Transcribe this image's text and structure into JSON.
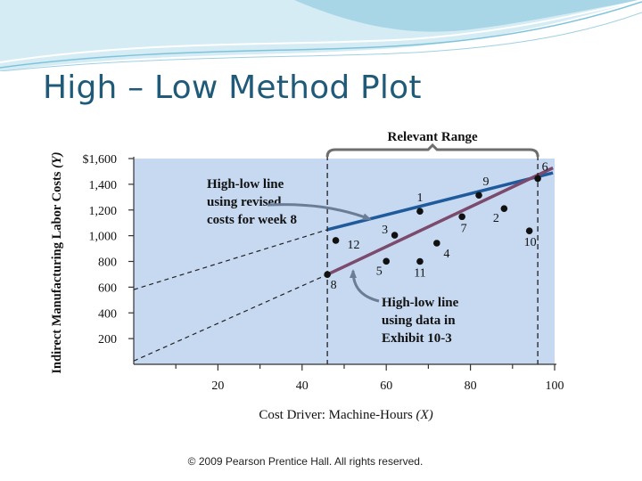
{
  "slide": {
    "title": "High – Low Method Plot",
    "copyright": "© 2009 Pearson Prentice Hall. All rights reserved."
  },
  "colors": {
    "plot_bg": "#c6d9f1",
    "revised_line": "#1f5b9c",
    "original_line": "#7b4a6c",
    "points": "#111111",
    "bracket": "#6e6e6e",
    "arrow": "#6b7d95"
  },
  "chart_data": {
    "type": "scatter",
    "title": "",
    "xlabel": "Cost Driver: Machine-Hours",
    "xlabel_var": "(X)",
    "ylabel": "Indirect Manufacturing Labor Costs",
    "ylabel_var": "(Y)",
    "xlim": [
      0,
      100
    ],
    "ylim": [
      0,
      1600
    ],
    "x_ticks": [
      20,
      40,
      60,
      80,
      100
    ],
    "y_ticks": [
      200,
      400,
      600,
      800,
      1000,
      1200,
      1400,
      1600
    ],
    "y_tick_labels": [
      "200",
      "400",
      "600",
      "800",
      "1,000",
      "1,200",
      "1,400",
      "$1,600"
    ],
    "grid": false,
    "relevant_range": {
      "label": "Relevant Range",
      "x_start": 46,
      "x_end": 96
    },
    "points": [
      {
        "label": "1",
        "x": 68,
        "y": 1190
      },
      {
        "label": "2",
        "x": 88,
        "y": 1211
      },
      {
        "label": "3",
        "x": 62,
        "y": 1004
      },
      {
        "label": "4",
        "x": 72,
        "y": 942
      },
      {
        "label": "5",
        "x": 60,
        "y": 801
      },
      {
        "label": "6",
        "x": 96,
        "y": 1445
      },
      {
        "label": "7",
        "x": 78,
        "y": 1148
      },
      {
        "label": "8",
        "x": 46,
        "y": 698
      },
      {
        "label": "9",
        "x": 82,
        "y": 1315
      },
      {
        "label": "10",
        "x": 94,
        "y": 1038
      },
      {
        "label": "11",
        "x": 68,
        "y": 800
      },
      {
        "label": "12",
        "x": 48,
        "y": 963
      }
    ],
    "lines": [
      {
        "id": "revised",
        "label_lines": [
          "High-low line",
          "using revised",
          "costs for week 8"
        ],
        "from": [
          46,
          1047
        ],
        "to": [
          96,
          1445
        ],
        "extrapolated_from": [
          0,
          581
        ]
      },
      {
        "id": "original",
        "label_lines": [
          "High-low line",
          "using data in",
          "Exhibit 10-3"
        ],
        "from": [
          46,
          698
        ],
        "to": [
          96,
          1445
        ],
        "extrapolated_from": [
          0,
          26
        ]
      }
    ]
  }
}
